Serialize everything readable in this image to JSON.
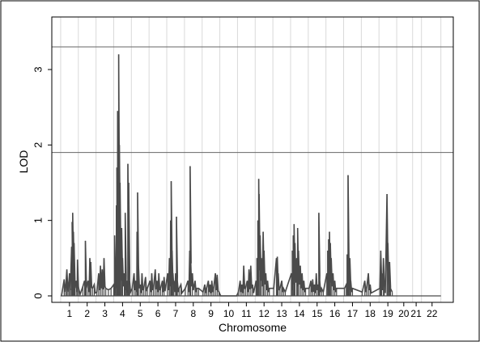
{
  "chart_data": {
    "type": "line",
    "title": "",
    "xlabel": "Chromosome",
    "ylabel": "LOD",
    "ylim": [
      0,
      3.5
    ],
    "xlim": [
      0,
      22.7
    ],
    "grid": "vertical lines at chromosome boundaries",
    "line_color": "#4a4a4a",
    "yticks": [
      0,
      1,
      2,
      3
    ],
    "ytick_labels": [
      "0",
      "1",
      "2",
      "3"
    ],
    "threshold_lines": [
      3.3,
      1.9
    ],
    "chromosomes": [
      "1",
      "2",
      "3",
      "4",
      "5",
      "6",
      "7",
      "8",
      "9",
      "10",
      "11",
      "12",
      "13",
      "14",
      "15",
      "16",
      "17",
      "18",
      "19",
      "20",
      "21",
      "22"
    ],
    "chromosome_label_positions": [
      1.0,
      2.0,
      3.0,
      4.0,
      5.0,
      6.0,
      7.0,
      8.0,
      9.0,
      10.0,
      11.0,
      12.0,
      13.0,
      14.0,
      15.0,
      16.0,
      17.0,
      18.0,
      19.0,
      19.9,
      20.6,
      21.5
    ],
    "boundaries": [
      0.5,
      1.5,
      2.5,
      3.5,
      4.5,
      5.5,
      6.5,
      7.5,
      8.5,
      9.5,
      10.5,
      11.5,
      12.5,
      13.5,
      14.5,
      15.5,
      16.5,
      17.5,
      18.5,
      19.5,
      20.4,
      20.9,
      22.0
    ],
    "peaks": [
      [
        0.55,
        0.0
      ],
      [
        0.7,
        0.22
      ],
      [
        0.78,
        0.08
      ],
      [
        0.85,
        0.35
      ],
      [
        0.92,
        0.05
      ],
      [
        1.0,
        0.3
      ],
      [
        1.05,
        0.1
      ],
      [
        1.12,
        0.65
      ],
      [
        1.15,
        0.98
      ],
      [
        1.18,
        1.1
      ],
      [
        1.22,
        0.85
      ],
      [
        1.26,
        0.7
      ],
      [
        1.3,
        0.1
      ],
      [
        1.38,
        0.2
      ],
      [
        1.45,
        0.48
      ],
      [
        1.52,
        0.1
      ],
      [
        1.6,
        0.02
      ],
      [
        1.75,
        0.12
      ],
      [
        1.85,
        0.2
      ],
      [
        1.9,
        0.73
      ],
      [
        1.95,
        0.1
      ],
      [
        2.05,
        0.2
      ],
      [
        2.15,
        0.5
      ],
      [
        2.2,
        0.45
      ],
      [
        2.3,
        0.1
      ],
      [
        2.4,
        0.15
      ],
      [
        2.55,
        0.05
      ],
      [
        2.65,
        0.3
      ],
      [
        2.75,
        0.4
      ],
      [
        2.85,
        0.35
      ],
      [
        2.95,
        0.5
      ],
      [
        3.05,
        0.1
      ],
      [
        3.2,
        0.08
      ],
      [
        3.35,
        0.1
      ],
      [
        3.5,
        0.15
      ],
      [
        3.55,
        0.8
      ],
      [
        3.6,
        0.4
      ],
      [
        3.65,
        1.2
      ],
      [
        3.68,
        1.7
      ],
      [
        3.72,
        2.45
      ],
      [
        3.75,
        2.35
      ],
      [
        3.78,
        3.2
      ],
      [
        3.82,
        2.0
      ],
      [
        3.86,
        1.5
      ],
      [
        3.9,
        0.8
      ],
      [
        3.95,
        0.9
      ],
      [
        4.0,
        0.5
      ],
      [
        4.1,
        0.3
      ],
      [
        4.15,
        1.1
      ],
      [
        4.2,
        0.15
      ],
      [
        4.25,
        0.2
      ],
      [
        4.3,
        1.75
      ],
      [
        4.35,
        1.5
      ],
      [
        4.4,
        0.2
      ],
      [
        4.55,
        0.1
      ],
      [
        4.65,
        0.3
      ],
      [
        4.75,
        0.2
      ],
      [
        4.82,
        0.85
      ],
      [
        4.85,
        1.37
      ],
      [
        4.9,
        0.4
      ],
      [
        5.0,
        0.15
      ],
      [
        5.1,
        0.3
      ],
      [
        5.2,
        0.1
      ],
      [
        5.3,
        0.25
      ],
      [
        5.4,
        0.1
      ],
      [
        5.55,
        0.2
      ],
      [
        5.65,
        0.3
      ],
      [
        5.75,
        0.1
      ],
      [
        5.85,
        0.35
      ],
      [
        5.95,
        0.2
      ],
      [
        6.05,
        0.3
      ],
      [
        6.15,
        0.1
      ],
      [
        6.25,
        0.2
      ],
      [
        6.35,
        0.25
      ],
      [
        6.55,
        0.3
      ],
      [
        6.65,
        0.5
      ],
      [
        6.72,
        1.0
      ],
      [
        6.75,
        1.52
      ],
      [
        6.8,
        0.6
      ],
      [
        6.85,
        0.3
      ],
      [
        6.9,
        0.2
      ],
      [
        7.0,
        0.3
      ],
      [
        7.05,
        1.05
      ],
      [
        7.1,
        0.2
      ],
      [
        7.2,
        0.1
      ],
      [
        7.3,
        0.15
      ],
      [
        7.55,
        0.1
      ],
      [
        7.7,
        0.2
      ],
      [
        7.8,
        0.6
      ],
      [
        7.82,
        1.72
      ],
      [
        7.85,
        0.5
      ],
      [
        7.95,
        0.3
      ],
      [
        8.1,
        0.2
      ],
      [
        8.2,
        0.1
      ],
      [
        8.3,
        0.1
      ],
      [
        8.55,
        0.05
      ],
      [
        8.65,
        0.15
      ],
      [
        8.75,
        0.1
      ],
      [
        8.85,
        0.2
      ],
      [
        8.95,
        0.15
      ],
      [
        9.05,
        0.2
      ],
      [
        9.15,
        0.1
      ],
      [
        9.25,
        0.3
      ],
      [
        9.35,
        0.28
      ],
      [
        9.45,
        0.05
      ],
      [
        9.55,
        0.0
      ],
      [
        10.0,
        0.0
      ],
      [
        10.45,
        0.0
      ],
      [
        10.55,
        0.05
      ],
      [
        10.65,
        0.2
      ],
      [
        10.75,
        0.15
      ],
      [
        10.85,
        0.4
      ],
      [
        10.95,
        0.1
      ],
      [
        11.05,
        0.2
      ],
      [
        11.15,
        0.35
      ],
      [
        11.25,
        0.4
      ],
      [
        11.35,
        0.15
      ],
      [
        11.55,
        0.2
      ],
      [
        11.6,
        0.5
      ],
      [
        11.65,
        1.0
      ],
      [
        11.7,
        1.55
      ],
      [
        11.72,
        1.35
      ],
      [
        11.78,
        0.8
      ],
      [
        11.85,
        0.5
      ],
      [
        11.95,
        0.85
      ],
      [
        12.0,
        0.6
      ],
      [
        12.1,
        0.3
      ],
      [
        12.2,
        0.2
      ],
      [
        12.3,
        0.1
      ],
      [
        12.55,
        0.1
      ],
      [
        12.7,
        0.5
      ],
      [
        12.75,
        0.52
      ],
      [
        12.8,
        0.3
      ],
      [
        12.9,
        0.1
      ],
      [
        13.0,
        0.2
      ],
      [
        13.1,
        0.1
      ],
      [
        13.2,
        0.05
      ],
      [
        13.55,
        0.3
      ],
      [
        13.6,
        0.6
      ],
      [
        13.65,
        0.8
      ],
      [
        13.7,
        0.95
      ],
      [
        13.75,
        0.7
      ],
      [
        13.85,
        0.5
      ],
      [
        13.9,
        0.9
      ],
      [
        13.95,
        0.6
      ],
      [
        14.05,
        0.4
      ],
      [
        14.15,
        0.3
      ],
      [
        14.25,
        0.2
      ],
      [
        14.35,
        0.1
      ],
      [
        14.55,
        0.1
      ],
      [
        14.65,
        0.2
      ],
      [
        14.75,
        0.22
      ],
      [
        14.85,
        0.15
      ],
      [
        14.95,
        0.3
      ],
      [
        15.05,
        0.15
      ],
      [
        15.1,
        1.1
      ],
      [
        15.15,
        0.2
      ],
      [
        15.25,
        0.1
      ],
      [
        15.35,
        0.05
      ],
      [
        15.55,
        0.3
      ],
      [
        15.6,
        0.6
      ],
      [
        15.65,
        0.75
      ],
      [
        15.7,
        0.85
      ],
      [
        15.75,
        0.7
      ],
      [
        15.8,
        0.5
      ],
      [
        15.9,
        0.3
      ],
      [
        16.0,
        0.2
      ],
      [
        16.1,
        0.1
      ],
      [
        16.55,
        0.1
      ],
      [
        16.65,
        0.15
      ],
      [
        16.7,
        0.55
      ],
      [
        16.75,
        1.6
      ],
      [
        16.8,
        0.3
      ],
      [
        16.85,
        0.5
      ],
      [
        16.9,
        0.2
      ],
      [
        17.0,
        0.1
      ],
      [
        17.55,
        0.05
      ],
      [
        17.7,
        0.2
      ],
      [
        17.8,
        0.1
      ],
      [
        17.9,
        0.3
      ],
      [
        18.0,
        0.15
      ],
      [
        18.55,
        0.1
      ],
      [
        18.6,
        0.6
      ],
      [
        18.65,
        0.3
      ],
      [
        18.75,
        0.5
      ],
      [
        18.8,
        0.15
      ],
      [
        18.95,
        1.35
      ],
      [
        19.0,
        0.7
      ],
      [
        19.05,
        0.2
      ],
      [
        19.1,
        0.45
      ],
      [
        19.15,
        0.1
      ],
      [
        19.25,
        0.05
      ]
    ]
  }
}
